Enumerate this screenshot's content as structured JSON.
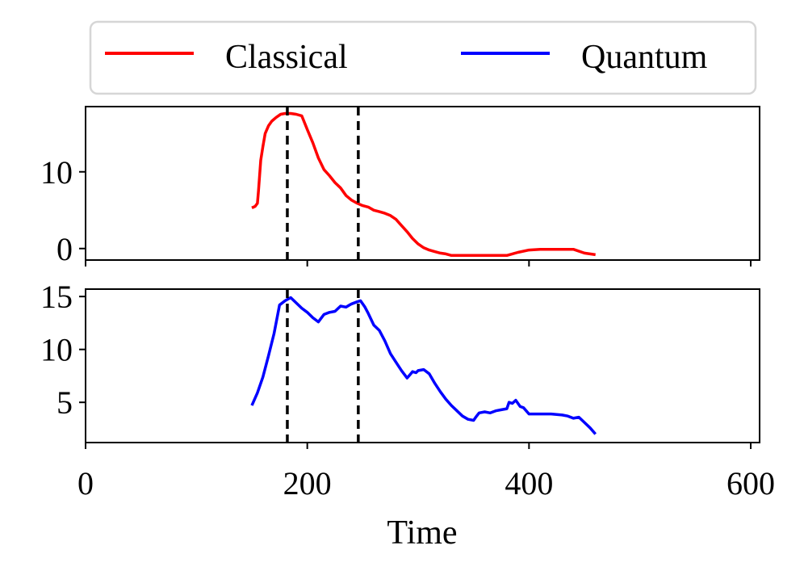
{
  "chart_data": {
    "type": "line",
    "layout": "two vertically stacked panels sharing the x axis",
    "legend": {
      "placement": "top, above panels",
      "columns": 2,
      "entries": [
        {
          "label": "Classical",
          "color": "#ff0000"
        },
        {
          "label": "Quantum",
          "color": "#0000ff"
        }
      ]
    },
    "xlabel": "Time",
    "xlim": [
      0,
      608
    ],
    "xticks": [
      0,
      200,
      400,
      600
    ],
    "vlines": {
      "x": [
        182,
        246
      ],
      "style": "dashed",
      "color": "#000000"
    },
    "grid": false,
    "panels": [
      {
        "series_name": "Classical",
        "color": "#ff0000",
        "ylim": [
          -1.5,
          18.5
        ],
        "yticks": [
          0,
          10
        ],
        "x": [
          150,
          153,
          155,
          156,
          157,
          158,
          160,
          162,
          165,
          168,
          172,
          176,
          180,
          185,
          190,
          195,
          200,
          205,
          210,
          215,
          220,
          225,
          230,
          235,
          240,
          245,
          250,
          255,
          260,
          265,
          270,
          275,
          280,
          285,
          290,
          295,
          300,
          305,
          310,
          315,
          320,
          325,
          330,
          335,
          340,
          350,
          360,
          370,
          380,
          390,
          400,
          410,
          420,
          430,
          440,
          450,
          455,
          460
        ],
        "y": [
          5.3,
          5.5,
          5.9,
          7.5,
          9.5,
          11.5,
          13.3,
          15.0,
          16.0,
          16.6,
          17.1,
          17.5,
          17.6,
          17.6,
          17.5,
          17.3,
          15.5,
          13.8,
          11.8,
          10.3,
          9.5,
          8.6,
          7.9,
          6.9,
          6.3,
          5.9,
          5.6,
          5.4,
          5.0,
          4.8,
          4.6,
          4.3,
          3.8,
          3.0,
          2.2,
          1.3,
          0.6,
          0.1,
          -0.2,
          -0.4,
          -0.6,
          -0.7,
          -0.9,
          -0.9,
          -0.9,
          -0.9,
          -0.9,
          -0.9,
          -0.9,
          -0.5,
          -0.2,
          -0.1,
          -0.1,
          -0.1,
          -0.1,
          -0.6,
          -0.7,
          -0.8
        ]
      },
      {
        "series_name": "Quantum",
        "color": "#0000ff",
        "ylim": [
          1.2,
          15.7
        ],
        "yticks": [
          5,
          10,
          15
        ],
        "x": [
          150,
          155,
          160,
          165,
          170,
          175,
          180,
          185,
          190,
          195,
          200,
          205,
          210,
          215,
          220,
          225,
          230,
          235,
          238,
          240,
          245,
          248,
          252,
          255,
          260,
          265,
          270,
          275,
          280,
          285,
          290,
          295,
          298,
          300,
          305,
          310,
          315,
          320,
          325,
          330,
          335,
          340,
          345,
          350,
          352,
          355,
          360,
          365,
          370,
          375,
          380,
          382,
          385,
          388,
          392,
          395,
          400,
          410,
          420,
          430,
          435,
          440,
          445,
          450,
          455,
          460
        ],
        "y": [
          4.7,
          5.9,
          7.4,
          9.4,
          11.5,
          14.2,
          14.6,
          14.9,
          14.4,
          13.9,
          13.5,
          13.0,
          12.6,
          13.3,
          13.5,
          13.6,
          14.1,
          14.0,
          14.2,
          14.3,
          14.5,
          14.6,
          14.0,
          13.4,
          12.3,
          11.8,
          10.8,
          9.6,
          8.8,
          8.0,
          7.3,
          7.9,
          7.8,
          8.0,
          8.1,
          7.7,
          6.8,
          6.0,
          5.3,
          4.7,
          4.2,
          3.7,
          3.4,
          3.3,
          3.6,
          4.0,
          4.1,
          4.0,
          4.2,
          4.3,
          4.4,
          5.0,
          4.9,
          5.2,
          4.6,
          4.5,
          3.9,
          3.9,
          3.9,
          3.8,
          3.7,
          3.5,
          3.6,
          3.1,
          2.6,
          2.0
        ]
      }
    ]
  }
}
